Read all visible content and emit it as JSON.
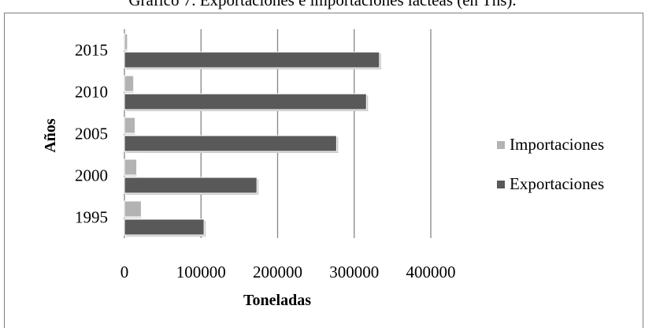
{
  "chart_data": {
    "type": "bar",
    "orientation": "horizontal",
    "title": "Gráfico 7. Exportaciones e importaciones lácteas (en Tns).",
    "xlabel": "Toneladas",
    "ylabel": "Años",
    "categories": [
      "1995",
      "2000",
      "2005",
      "2010",
      "2015"
    ],
    "series": [
      {
        "name": "Importaciones",
        "values": [
          22000,
          16000,
          14000,
          12000,
          4000
        ],
        "color": "#b3b3b3"
      },
      {
        "name": "Exportaciones",
        "values": [
          104000,
          173000,
          277000,
          316000,
          333000
        ],
        "color": "#595959"
      }
    ],
    "xlim": [
      0,
      400000
    ],
    "xticks": [
      "0",
      "100000",
      "200000",
      "300000",
      "400000"
    ],
    "grid": "vertical",
    "legend": "right"
  }
}
